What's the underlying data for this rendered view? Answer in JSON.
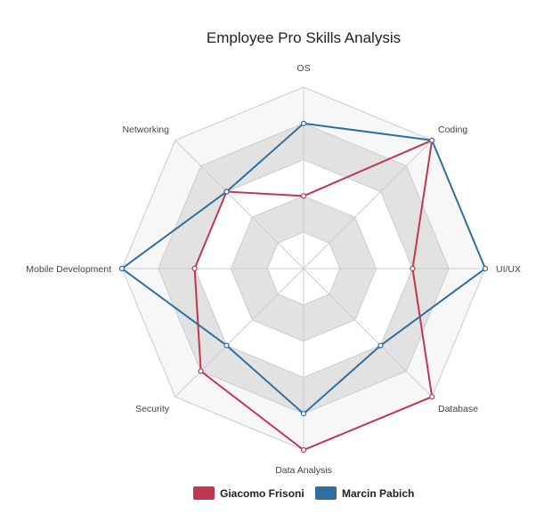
{
  "chart_data": {
    "type": "radar",
    "title": "Employee Pro Skills Analysis",
    "axes": [
      "OS",
      "Coding",
      "UI/UX",
      "Database",
      "Data Analysis",
      "Security",
      "Mobile Development",
      "Networking"
    ],
    "rlim": [
      0,
      5
    ],
    "grid": "polygon, alternating grey bands",
    "legend": "bottom-center",
    "series": [
      {
        "name": "Giacomo Frisoni",
        "color": "#c0384f",
        "values": [
          2,
          5,
          3,
          5,
          5,
          4,
          3,
          3
        ]
      },
      {
        "name": "Marcin Pabich",
        "color": "#2f6e9d",
        "values": [
          4,
          5,
          5,
          3,
          4,
          3,
          5,
          3
        ]
      }
    ]
  }
}
